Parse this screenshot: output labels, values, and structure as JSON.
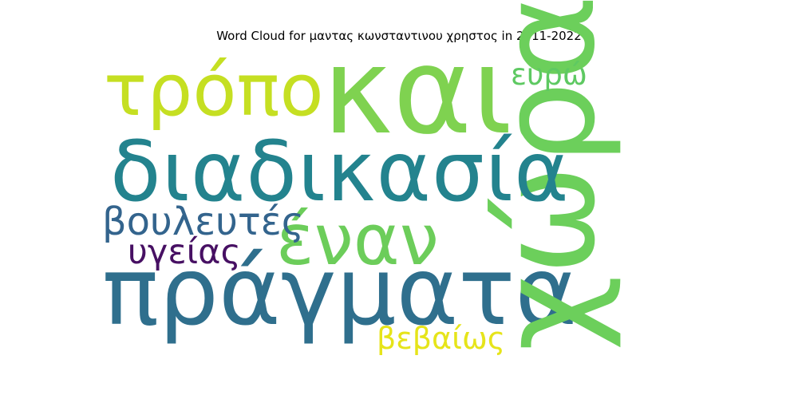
{
  "chart_data": {
    "type": "wordcloud",
    "title": "Word Cloud for μαντας κωνσταντινου χρηστος in 2011-2022",
    "words": [
      {
        "text": "πράγματα",
        "weight": 1.0,
        "color": "#2f6f8d",
        "orientation": "horizontal"
      },
      {
        "text": "χώρα",
        "weight": 1.0,
        "color": "#6ccf5b",
        "orientation": "vertical"
      },
      {
        "text": "και",
        "weight": 0.93,
        "color": "#7fd250",
        "orientation": "horizontal"
      },
      {
        "text": "διαδικασία",
        "weight": 0.78,
        "color": "#23838e",
        "orientation": "horizontal"
      },
      {
        "text": "τρόπο",
        "weight": 0.62,
        "color": "#c5df22",
        "orientation": "horizontal"
      },
      {
        "text": "έναν",
        "weight": 0.6,
        "color": "#6ccd5a",
        "orientation": "horizontal"
      },
      {
        "text": "βουλευτές",
        "weight": 0.37,
        "color": "#33648d",
        "orientation": "horizontal"
      },
      {
        "text": "υγείας",
        "weight": 0.33,
        "color": "#471063",
        "orientation": "horizontal"
      },
      {
        "text": "βεβαίως",
        "weight": 0.3,
        "color": "#e6e41a",
        "orientation": "horizontal"
      },
      {
        "text": "ευρώ",
        "weight": 0.28,
        "color": "#5ec962",
        "orientation": "horizontal"
      }
    ]
  }
}
